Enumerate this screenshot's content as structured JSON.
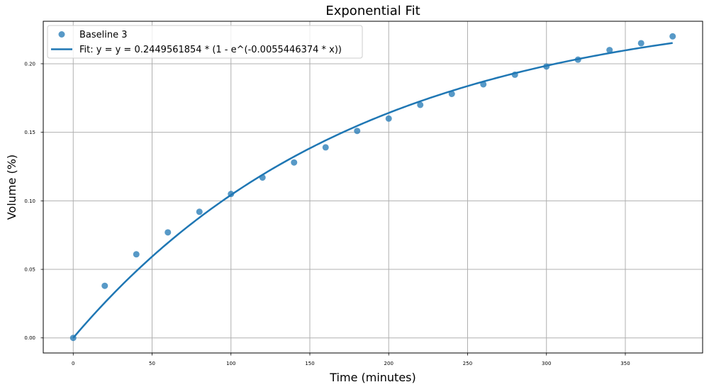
{
  "chart_data": {
    "type": "scatter",
    "title": "Exponential Fit",
    "xlabel": "Time (minutes)",
    "ylabel": "Volume (%)",
    "xlim": [
      -19,
      399
    ],
    "ylim": [
      -0.011,
      0.231
    ],
    "x_ticks": [
      0,
      50,
      100,
      150,
      200,
      250,
      300,
      350
    ],
    "y_ticks": [
      0.0,
      0.05,
      0.1,
      0.15,
      0.2
    ],
    "x_tick_labels": [
      "0",
      "50",
      "100",
      "150",
      "200",
      "250",
      "300",
      "350"
    ],
    "y_tick_labels": [
      "0.00",
      "0.05",
      "0.10",
      "0.15",
      "0.20"
    ],
    "grid": true,
    "legend_position": "top-left",
    "series": [
      {
        "name": "Baseline 3",
        "kind": "scatter",
        "color": "#1f77b4",
        "x": [
          0,
          20,
          40,
          60,
          80,
          100,
          120,
          140,
          160,
          180,
          200,
          220,
          240,
          260,
          280,
          300,
          320,
          340,
          360,
          380
        ],
        "y": [
          0.0,
          0.038,
          0.061,
          0.077,
          0.092,
          0.105,
          0.117,
          0.128,
          0.139,
          0.151,
          0.16,
          0.17,
          0.178,
          0.185,
          0.192,
          0.198,
          0.203,
          0.21,
          0.215,
          0.22
        ]
      },
      {
        "name": "Fit: y = y = 0.2449561854 * (1 - e^(-0.0055446374 * x))",
        "kind": "line",
        "color": "#1f77b4",
        "a": 0.2449561854,
        "b": 0.0055446374,
        "x_range": [
          0,
          380
        ]
      }
    ]
  }
}
